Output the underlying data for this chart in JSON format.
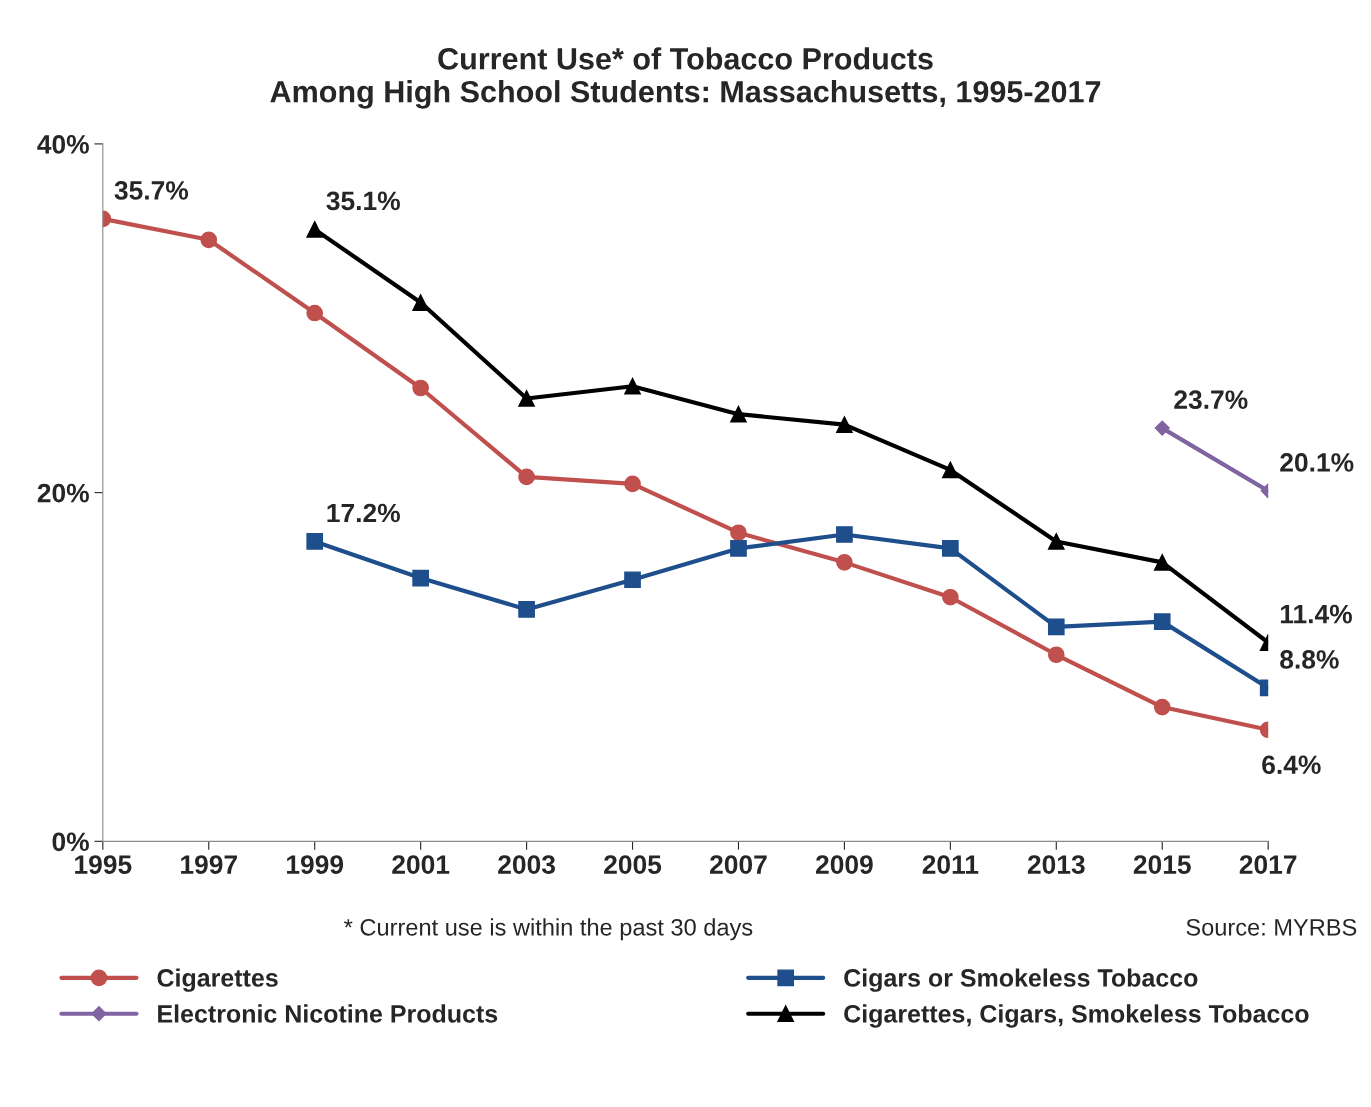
{
  "chart_data": {
    "type": "line",
    "title": "Current Use* of Tobacco Products\nAmong High School Students: Massachusetts, 1995-2017",
    "x": [
      1995,
      1997,
      1999,
      2001,
      2003,
      2005,
      2007,
      2009,
      2011,
      2013,
      2015,
      2017
    ],
    "series": [
      {
        "name": "Cigarettes",
        "color": "#c0504d",
        "marker": "circle",
        "values": [
          35.7,
          34.5,
          30.3,
          26.0,
          20.9,
          20.5,
          17.7,
          16.0,
          14.0,
          10.7,
          7.7,
          6.4
        ],
        "value_labels": [
          "35.7%",
          null,
          null,
          null,
          null,
          null,
          null,
          null,
          null,
          null,
          null,
          "6.4%"
        ]
      },
      {
        "name": "Cigars or Smokeless Tobacco",
        "color": "#1f4e8c",
        "marker": "square",
        "values": [
          null,
          null,
          17.2,
          15.1,
          13.3,
          15.0,
          16.8,
          17.6,
          16.8,
          12.3,
          12.6,
          8.8
        ],
        "value_labels": [
          null,
          null,
          "17.2%",
          null,
          null,
          null,
          null,
          null,
          null,
          null,
          null,
          "8.8%"
        ]
      },
      {
        "name": "Electronic Nicotine Products",
        "color": "#8064a2",
        "marker": "diamond",
        "values": [
          null,
          null,
          null,
          null,
          null,
          null,
          null,
          null,
          null,
          null,
          23.7,
          20.1
        ],
        "value_labels": [
          null,
          null,
          null,
          null,
          null,
          null,
          null,
          null,
          null,
          null,
          "23.7%",
          "20.1%"
        ]
      },
      {
        "name": "Cigarettes, Cigars, Smokeless Tobacco",
        "color": "#000000",
        "marker": "triangle",
        "values": [
          null,
          null,
          35.1,
          30.9,
          25.4,
          26.1,
          24.5,
          23.9,
          21.3,
          17.2,
          16.0,
          11.4
        ],
        "value_labels": [
          null,
          null,
          "35.1%",
          null,
          null,
          null,
          null,
          null,
          null,
          null,
          null,
          "11.4%"
        ]
      }
    ],
    "xlim": [
      1995,
      2017
    ],
    "xticks": [
      1995,
      1997,
      1999,
      2001,
      2003,
      2005,
      2007,
      2009,
      2011,
      2013,
      2015,
      2017
    ],
    "ylim": [
      0,
      40
    ],
    "yticks": [
      {
        "value": 0,
        "label": "0%"
      },
      {
        "value": 20,
        "label": "20%"
      },
      {
        "value": 40,
        "label": "40%"
      }
    ],
    "grid": false,
    "legend": "bottom",
    "line_style": "solid",
    "annotations": [
      "* Current use is within the past 30 days",
      "Source: MYRBS"
    ]
  }
}
